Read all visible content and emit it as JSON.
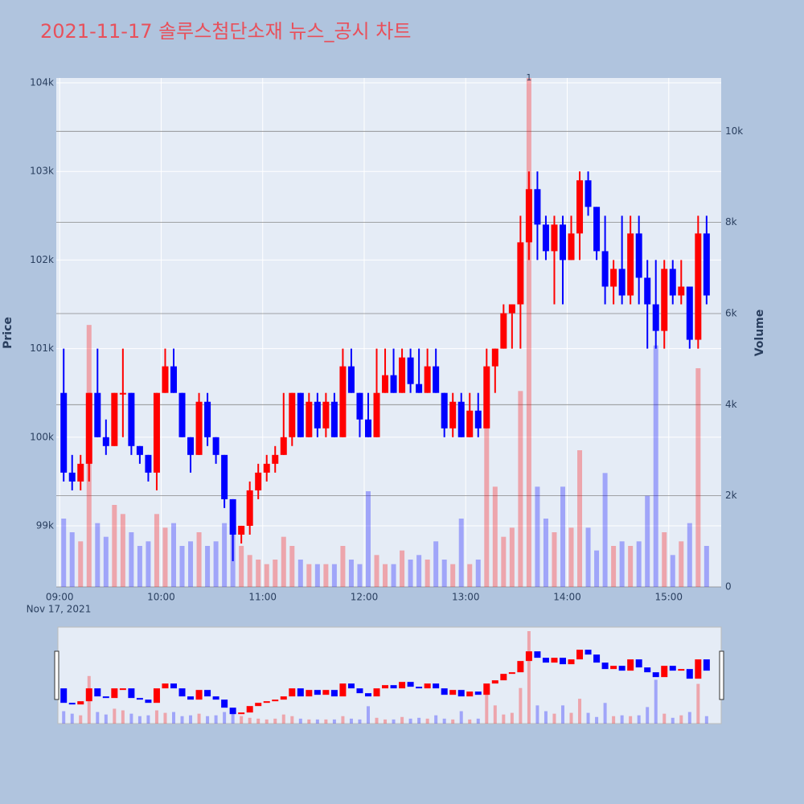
{
  "chart_data": {
    "type": "candlestick",
    "title": "2021-11-17 솔루스첨단소재 뉴스_공시 차트",
    "y_label": "Price",
    "y2_label": "Volume",
    "x_date_label": "Nov 17, 2021",
    "increasing_color": "#ff0000",
    "decreasing_color": "#0000ff",
    "x": [
      "09:00",
      "09:05",
      "09:10",
      "09:15",
      "09:20",
      "09:25",
      "09:30",
      "09:35",
      "09:40",
      "09:45",
      "09:50",
      "09:55",
      "10:00",
      "10:05",
      "10:10",
      "10:15",
      "10:20",
      "10:25",
      "10:30",
      "10:35",
      "10:40",
      "10:45",
      "10:50",
      "10:55",
      "11:00",
      "11:05",
      "11:10",
      "11:15",
      "11:20",
      "11:25",
      "11:30",
      "11:35",
      "11:40",
      "11:45",
      "11:50",
      "11:55",
      "12:00",
      "12:05",
      "12:10",
      "12:15",
      "12:20",
      "12:25",
      "12:30",
      "12:35",
      "12:40",
      "12:45",
      "12:50",
      "12:55",
      "13:00",
      "13:05",
      "13:10",
      "13:15",
      "13:20",
      "13:25",
      "13:30",
      "13:35",
      "13:40",
      "13:45",
      "13:50",
      "13:55",
      "14:00",
      "14:05",
      "14:10",
      "14:15",
      "14:20",
      "14:25",
      "14:30",
      "14:35",
      "14:40",
      "14:45",
      "14:50",
      "14:55",
      "15:00",
      "15:05",
      "15:10",
      "15:15",
      "15:20"
    ],
    "open": [
      100500,
      99600,
      99500,
      99700,
      100500,
      100000,
      99900,
      100500,
      100500,
      99900,
      99800,
      99600,
      100500,
      100800,
      100500,
      100000,
      99800,
      100400,
      100000,
      99800,
      99300,
      98900,
      99000,
      99400,
      99600,
      99700,
      99800,
      100000,
      100500,
      100000,
      100400,
      100100,
      100400,
      100000,
      100800,
      100500,
      100200,
      100000,
      100500,
      100700,
      100500,
      100900,
      100600,
      100500,
      100800,
      100500,
      100100,
      100400,
      100000,
      100300,
      100100,
      100800,
      101000,
      101400,
      101500,
      102200,
      102800,
      102400,
      102100,
      102400,
      102000,
      102300,
      102900,
      102600,
      102100,
      101700,
      101900,
      101600,
      102300,
      101800,
      101500,
      101200,
      101900,
      101600,
      101700,
      101100,
      102300
    ],
    "high": [
      101000,
      99800,
      99800,
      100500,
      101000,
      100200,
      100500,
      101000,
      100500,
      99900,
      99800,
      100500,
      101000,
      101000,
      100500,
      100000,
      100500,
      100500,
      100000,
      99800,
      99300,
      99000,
      99500,
      99700,
      99800,
      99900,
      100500,
      100500,
      100500,
      100500,
      100500,
      100500,
      100500,
      101000,
      101000,
      100500,
      100500,
      101000,
      101000,
      101000,
      101000,
      101000,
      101000,
      101000,
      101000,
      100500,
      100500,
      100500,
      100500,
      100500,
      101000,
      101000,
      101500,
      101500,
      102500,
      103000,
      103000,
      102500,
      102500,
      102500,
      102500,
      103000,
      103000,
      102600,
      102500,
      102000,
      102500,
      102500,
      102500,
      102000,
      102000,
      102000,
      102000,
      102000,
      101700,
      102500,
      102500
    ],
    "low": [
      99500,
      99400,
      99400,
      99500,
      100000,
      99800,
      99900,
      100000,
      99800,
      99700,
      99500,
      99400,
      100500,
      100500,
      100000,
      99600,
      99800,
      99900,
      99700,
      99200,
      98600,
      98800,
      98900,
      99300,
      99500,
      99600,
      99800,
      99900,
      100000,
      100000,
      100000,
      100000,
      100000,
      100000,
      100500,
      100000,
      100000,
      100000,
      100500,
      100500,
      100500,
      100500,
      100500,
      100500,
      100500,
      100000,
      100000,
      100000,
      100000,
      100000,
      100100,
      100500,
      101000,
      101000,
      101000,
      102000,
      102000,
      102000,
      101500,
      101500,
      102000,
      102000,
      102500,
      102000,
      101500,
      101500,
      101500,
      101500,
      101500,
      101000,
      101000,
      101000,
      101500,
      101500,
      101000,
      101000,
      101500
    ],
    "close": [
      99600,
      99500,
      99700,
      100500,
      100000,
      99900,
      100500,
      100500,
      99900,
      99800,
      99600,
      100500,
      100800,
      100500,
      100000,
      99800,
      100400,
      100000,
      99800,
      99300,
      98900,
      99000,
      99400,
      99600,
      99700,
      99800,
      100000,
      100500,
      100000,
      100400,
      100100,
      100400,
      100000,
      100800,
      100500,
      100200,
      100000,
      100500,
      100700,
      100500,
      100900,
      100600,
      100500,
      100800,
      100500,
      100100,
      100400,
      100000,
      100300,
      100100,
      100800,
      101000,
      101400,
      101500,
      102200,
      102800,
      102400,
      102100,
      102400,
      102000,
      102300,
      102900,
      102600,
      102100,
      101700,
      101900,
      101600,
      102300,
      101800,
      101500,
      101200,
      101900,
      101600,
      101700,
      101100,
      102300,
      101600
    ],
    "volume": [
      1500,
      1200,
      1000,
      5750,
      1400,
      1100,
      1800,
      1600,
      1200,
      900,
      1000,
      1600,
      1300,
      1400,
      900,
      1000,
      1200,
      900,
      1000,
      1400,
      1500,
      900,
      700,
      600,
      500,
      600,
      1100,
      900,
      600,
      500,
      500,
      500,
      500,
      900,
      600,
      500,
      2100,
      700,
      500,
      500,
      800,
      600,
      700,
      600,
      1000,
      600,
      500,
      1500,
      500,
      600,
      4000,
      2200,
      1100,
      1300,
      4300,
      11170,
      2200,
      1500,
      1200,
      2200,
      1300,
      3000,
      1300,
      800,
      2500,
      900,
      1000,
      900,
      1000,
      2000,
      5300,
      1200,
      700,
      1000,
      1400,
      4800,
      900
    ],
    "annotations": [
      {
        "text": "1",
        "x": "13:35"
      }
    ],
    "xlim": [
      "08:58",
      "15:31"
    ],
    "xticks": [
      "09:00",
      "10:00",
      "11:00",
      "12:00",
      "13:00",
      "14:00",
      "15:00"
    ],
    "ylim": [
      98310,
      104055
    ],
    "yticks": [
      {
        "value": 99000,
        "label": "99k"
      },
      {
        "value": 100000,
        "label": "100k"
      },
      {
        "value": 101000,
        "label": "101k"
      },
      {
        "value": 102000,
        "label": "102k"
      },
      {
        "value": 103000,
        "label": "103k"
      },
      {
        "value": 104000,
        "label": "104k"
      }
    ],
    "y2lim": [
      0,
      11170
    ],
    "y2ticks": [
      0,
      {
        "value": 2000,
        "label": "2k"
      },
      {
        "value": 4000,
        "label": "4k"
      },
      {
        "value": 6000,
        "label": "6k"
      },
      {
        "value": 8000,
        "label": "8k"
      },
      {
        "value": 10000,
        "label": "10k"
      }
    ],
    "grid": true
  }
}
